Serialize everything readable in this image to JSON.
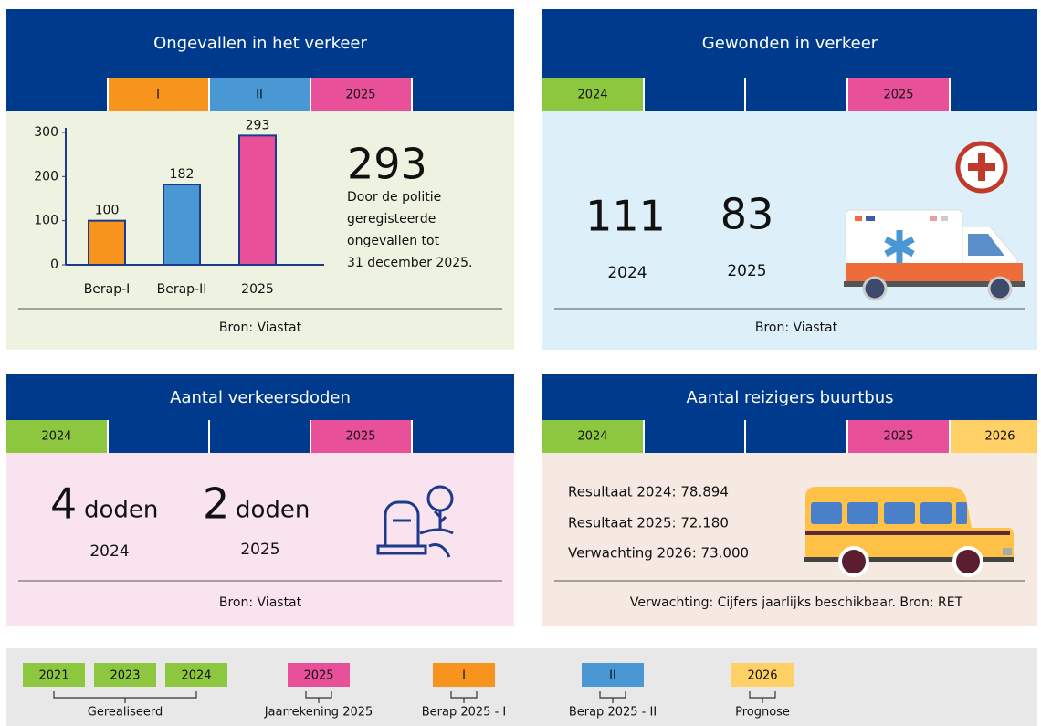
{
  "panels": [
    {
      "title": "Ongevallen in het verkeer",
      "tabs": [
        "I",
        "II",
        "2025"
      ],
      "chart_data": {
        "type": "bar",
        "categories": [
          "Berap-I",
          "Berap-II",
          "2025"
        ],
        "values": [
          100,
          182,
          293
        ],
        "colors": [
          "#f7941d",
          "#4a98d3",
          "#e8519a"
        ],
        "ylim": [
          0,
          300
        ],
        "yticks": [
          0,
          100,
          200,
          300
        ]
      },
      "big_number": "293",
      "description": [
        "Door de politie",
        "geregisteerde",
        "ongevallen tot",
        "31 december 2025."
      ],
      "source": "Bron: Viastat"
    },
    {
      "title": "Gewonden in verkeer",
      "tabs": [
        "2024",
        "2025"
      ],
      "stats": [
        {
          "value": "111",
          "year": "2024"
        },
        {
          "value": "83",
          "year": "2025"
        }
      ],
      "source": "Bron: Viastat"
    },
    {
      "title": "Aantal verkeersdoden",
      "tabs": [
        "2024",
        "2025"
      ],
      "stats": [
        {
          "value": "4",
          "unit": "doden",
          "year": "2024"
        },
        {
          "value": "2",
          "unit": "doden",
          "year": "2025"
        }
      ],
      "source": "Bron: Viastat"
    },
    {
      "title": "Aantal reizigers buurtbus",
      "tabs": [
        "2024",
        "2025",
        "2026"
      ],
      "lines": [
        "Resultaat 2024: 78.894",
        "Resultaat 2025: 72.180",
        "Verwachting 2026: 73.000"
      ],
      "source": "Verwachting: Cijfers jaarlijks beschikbaar. Bron: RET"
    }
  ],
  "legend": [
    {
      "label": "Gerealiseerd",
      "items": [
        "2021",
        "2023",
        "2024"
      ]
    },
    {
      "label": "Jaarrekening 2025",
      "items": [
        "2025"
      ]
    },
    {
      "label": "Berap 2025 - I",
      "items": [
        "I"
      ]
    },
    {
      "label": "Berap 2025 - II",
      "items": [
        "II"
      ]
    },
    {
      "label": "Prognose",
      "items": [
        "2026"
      ]
    }
  ]
}
